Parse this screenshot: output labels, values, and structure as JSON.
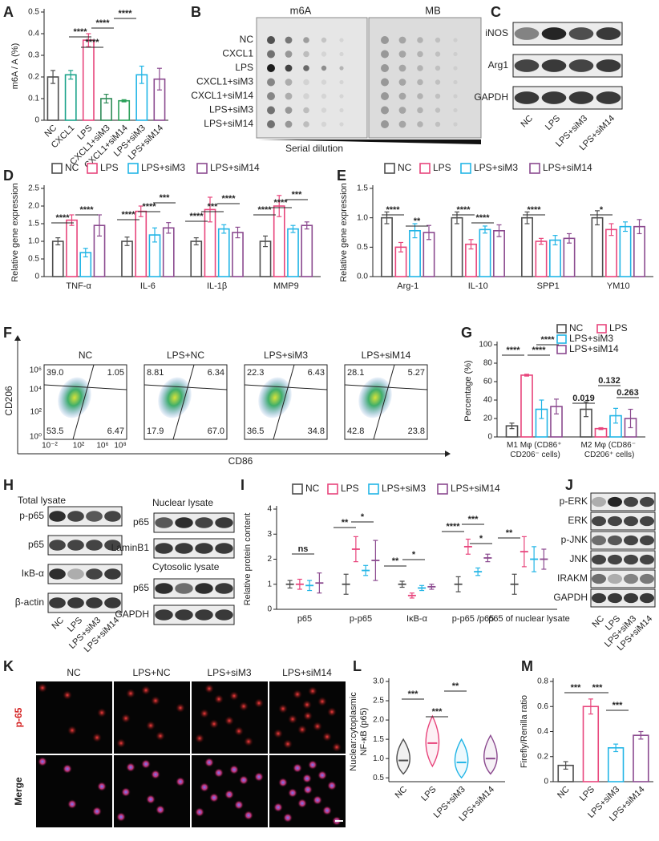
{
  "chart_data": [
    {
      "panel": "A",
      "type": "bar",
      "ylabel": "m6A / A (%)",
      "categories": [
        "NC",
        "CXCL1",
        "LPS",
        "CXCL1+siM3",
        "CXCL1+siM14",
        "LPS+siM3",
        "LPS+siM14"
      ],
      "values": [
        0.2,
        0.21,
        0.37,
        0.1,
        0.09,
        0.21,
        0.19
      ],
      "errors": [
        0.03,
        0.02,
        0.03,
        0.02,
        0.005,
        0.04,
        0.05
      ],
      "colors": [
        "#4d4d4d",
        "#1aa38a",
        "#e8457c",
        "#2e8b57",
        "#2ca05a",
        "#22b5e6",
        "#8b4a8f"
      ],
      "ylim": [
        0,
        0.5
      ],
      "yticks": [
        0,
        0.1,
        0.2,
        0.3,
        0.4,
        0.5
      ],
      "annotations": [
        "****",
        "****",
        "****",
        "****"
      ]
    },
    {
      "panel": "D",
      "type": "grouped_bar",
      "ylabel": "Relative gene expression",
      "legend": "top",
      "categories": [
        "TNF-α",
        "IL-6",
        "IL-1β",
        "MMP9"
      ],
      "series": [
        {
          "name": "NC",
          "color": "#4d4d4d",
          "values": [
            1,
            1,
            1,
            1
          ],
          "errors": [
            0.1,
            0.12,
            0.1,
            0.15
          ]
        },
        {
          "name": "LPS",
          "color": "#e8457c",
          "values": [
            1.6,
            1.85,
            1.9,
            2.0
          ],
          "errors": [
            0.15,
            0.15,
            0.35,
            0.3
          ]
        },
        {
          "name": "LPS+siM3",
          "color": "#22b5e6",
          "values": [
            0.68,
            1.18,
            1.35,
            1.35
          ],
          "errors": [
            0.12,
            0.2,
            0.12,
            0.1
          ]
        },
        {
          "name": "LPS+siM14",
          "color": "#8b4a8f",
          "values": [
            1.45,
            1.38,
            1.25,
            1.45
          ],
          "errors": [
            0.3,
            0.15,
            0.15,
            0.1
          ]
        }
      ],
      "ylim": [
        0,
        2.5
      ],
      "yticks": [
        0,
        0.5,
        {
          "value": 1,
          "label": "1.0"
        },
        1.5,
        {
          "value": 2,
          "label": "2.0"
        },
        2.5
      ],
      "annotations": [
        "****",
        "****",
        "****",
        "****",
        "***",
        "****",
        "***",
        "****",
        "****",
        "****",
        "***"
      ]
    },
    {
      "panel": "E",
      "type": "grouped_bar",
      "ylabel": "Relative gene expression",
      "legend": "top",
      "categories": [
        "Arg-1",
        "IL-10",
        "SPP1",
        "YM10"
      ],
      "series": [
        {
          "name": "NC",
          "color": "#4d4d4d",
          "values": [
            1,
            1,
            1,
            1
          ],
          "errors": [
            0.1,
            0.1,
            0.1,
            0.12
          ]
        },
        {
          "name": "LPS",
          "color": "#e8457c",
          "values": [
            0.5,
            0.55,
            0.6,
            0.8
          ],
          "errors": [
            0.08,
            0.08,
            0.05,
            0.1
          ]
        },
        {
          "name": "LPS+siM3",
          "color": "#22b5e6",
          "values": [
            0.78,
            0.8,
            0.62,
            0.85
          ],
          "errors": [
            0.12,
            0.06,
            0.08,
            0.08
          ]
        },
        {
          "name": "LPS+siM14",
          "color": "#8b4a8f",
          "values": [
            0.75,
            0.78,
            0.65,
            0.85
          ],
          "errors": [
            0.12,
            0.1,
            0.08,
            0.12
          ]
        }
      ],
      "ylim": [
        0,
        1.5
      ],
      "yticks": [
        {
          "value": 0,
          "label": "0.0"
        },
        0.5,
        {
          "value": 1,
          "label": "1.0"
        },
        1.5
      ],
      "annotations": [
        "****",
        "**",
        "****",
        "****",
        "****",
        "*"
      ]
    },
    {
      "panel": "G",
      "type": "grouped_bar",
      "ylabel": "Percentage (%)",
      "legend": "top right",
      "categories": [
        "M1 Mφ (CD86⁺ CD206⁻ cells)",
        "M2 Mφ (CD86⁻ CD206⁺ cells)"
      ],
      "series": [
        {
          "name": "NC",
          "color": "#4d4d4d",
          "values": [
            12,
            30
          ],
          "errors": [
            3,
            8
          ]
        },
        {
          "name": "LPS",
          "color": "#e8457c",
          "values": [
            67,
            9
          ],
          "errors": [
            1,
            1
          ]
        },
        {
          "name": "LPS+siM3",
          "color": "#22b5e6",
          "values": [
            30,
            23
          ],
          "errors": [
            10,
            8
          ]
        },
        {
          "name": "LPS+siM14",
          "color": "#8b4a8f",
          "values": [
            33,
            20
          ],
          "errors": [
            8,
            10
          ]
        }
      ],
      "ylim": [
        0,
        100
      ],
      "yticks": [
        0,
        20,
        40,
        60,
        80,
        100
      ],
      "annotations": [
        "****",
        "****",
        "****",
        "0.019",
        "0.132",
        "0.263"
      ]
    },
    {
      "panel": "I",
      "type": "errorbar",
      "ylabel": "Relative protein content",
      "legend": "top",
      "categories": [
        "p65",
        "p-p65",
        "IκB-α",
        "p-p65 /p65",
        "p65 of nuclear lysate"
      ],
      "series": [
        {
          "name": "NC",
          "color": "#4d4d4d",
          "values": [
            1,
            1,
            1,
            1,
            1
          ],
          "errors": [
            0.15,
            0.4,
            0.12,
            0.3,
            0.4
          ]
        },
        {
          "name": "LPS",
          "color": "#e8457c",
          "values": [
            1.0,
            2.4,
            0.55,
            2.5,
            2.3
          ],
          "errors": [
            0.2,
            0.5,
            0.1,
            0.3,
            0.6
          ]
        },
        {
          "name": "LPS+siM3",
          "color": "#22b5e6",
          "values": [
            0.95,
            1.55,
            0.85,
            1.5,
            2.0
          ],
          "errors": [
            0.2,
            0.2,
            0.1,
            0.15,
            0.5
          ]
        },
        {
          "name": "LPS+siM14",
          "color": "#8b4a8f",
          "values": [
            1.05,
            1.95,
            0.9,
            2.05,
            2.0
          ],
          "errors": [
            0.4,
            0.8,
            0.1,
            0.15,
            0.4
          ]
        }
      ],
      "ylim": [
        0,
        4
      ],
      "yticks": [
        0,
        1,
        2,
        3,
        4
      ],
      "annotations": [
        "ns",
        "**",
        "*",
        "**",
        "*",
        "****",
        "***",
        "*",
        "**"
      ]
    },
    {
      "panel": "L",
      "type": "violin",
      "ylabel": [
        "Nuclear:cytoplasmic",
        "NF-κB (p65)"
      ],
      "categories": [
        "NC",
        "LPS",
        "LPS+siM3",
        "LPS+siM14"
      ],
      "colors": [
        "#4d4d4d",
        "#e8457c",
        "#22b5e6",
        "#8b4a8f"
      ],
      "values": [
        0.95,
        1.4,
        0.9,
        1.0
      ],
      "ranges": [
        [
          0.6,
          1.5
        ],
        [
          0.8,
          2.1
        ],
        [
          0.5,
          1.5
        ],
        [
          0.6,
          1.6
        ]
      ],
      "ylim": [
        0.4,
        3.0
      ],
      "yticks": [
        0.5,
        {
          "value": 1,
          "label": "1.0"
        },
        1.5,
        {
          "value": 2,
          "label": "2.0"
        },
        2.5,
        {
          "value": 3,
          "label": "3.0"
        }
      ],
      "annotations": [
        "***",
        "***",
        "**"
      ]
    },
    {
      "panel": "M",
      "type": "bar",
      "ylabel": "Firefly/Renilla ratio",
      "categories": [
        "NC",
        "LPS",
        "LPS+siM3",
        "LPS+siM14"
      ],
      "values": [
        0.13,
        0.6,
        0.27,
        0.37
      ],
      "errors": [
        0.03,
        0.06,
        0.03,
        0.03
      ],
      "colors": [
        "#4d4d4d",
        "#e8457c",
        "#22b5e6",
        "#8b4a8f"
      ],
      "ylim": [
        0,
        0.8
      ],
      "yticks": [
        0,
        0.2,
        0.4,
        0.6,
        0.8
      ],
      "annotations": [
        "***",
        "***",
        "***"
      ]
    }
  ],
  "figures": [
    {
      "panel": "B",
      "headers": [
        "m6A",
        "MB"
      ],
      "rows": [
        "NC",
        "CXCL1",
        "LPS",
        "CXCL1+siM3",
        "CXCL1+siM14",
        "LPS+siM3",
        "LPS+siM14"
      ],
      "footer": "Serial dilution"
    },
    {
      "panel": "C",
      "rows": [
        "iNOS",
        "Arg1",
        "GAPDH"
      ],
      "lanes": [
        "NC",
        "LPS",
        "LPS+siM3",
        "LPS+siM14"
      ]
    },
    {
      "panel": "F",
      "titles": [
        "NC",
        "LPS+NC",
        "LPS+siM3",
        "LPS+siM14"
      ],
      "quadrants": [
        [
          "39.0",
          "1.05",
          "53.5",
          "6.47"
        ],
        [
          "8.81",
          "6.34",
          "17.9",
          "67.0"
        ],
        [
          "22.3",
          "6.43",
          "36.5",
          "34.8"
        ],
        [
          "28.1",
          "5.27",
          "42.8",
          "23.8"
        ]
      ],
      "xlabel": "CD86",
      "ylabel": "CD206",
      "yticks": [
        "10⁶",
        "10⁴",
        "10²",
        "10⁰"
      ],
      "xticks": [
        "10⁻²",
        "10²",
        "10⁶",
        "10⁸"
      ]
    },
    {
      "panel": "H",
      "groups": [
        {
          "title": "Total lysate",
          "rows": [
            "p-p65",
            "p65",
            "IκB-α",
            "β-actin"
          ]
        },
        {
          "title": "Nuclear lysate",
          "rows": [
            "p65",
            "LaminB1"
          ]
        },
        {
          "title": "Cytosolic lysate",
          "rows": [
            "p65",
            "GAPDH"
          ]
        }
      ],
      "lanes": [
        "NC",
        "LPS",
        "LPS+siM3",
        "LPS+siM14"
      ]
    },
    {
      "panel": "J",
      "rows": [
        "p-ERK",
        "ERK",
        "p-JNK",
        "JNK",
        "IRAKM",
        "GAPDH"
      ],
      "lanes": [
        "NC",
        "LPS",
        "LPS+siM3",
        "LPS+siM14"
      ]
    },
    {
      "panel": "K",
      "columns": [
        "NC",
        "LPS+NC",
        "LPS+siM3",
        "LPS+siM14"
      ],
      "rows": [
        "p-65",
        "Merge"
      ]
    }
  ]
}
